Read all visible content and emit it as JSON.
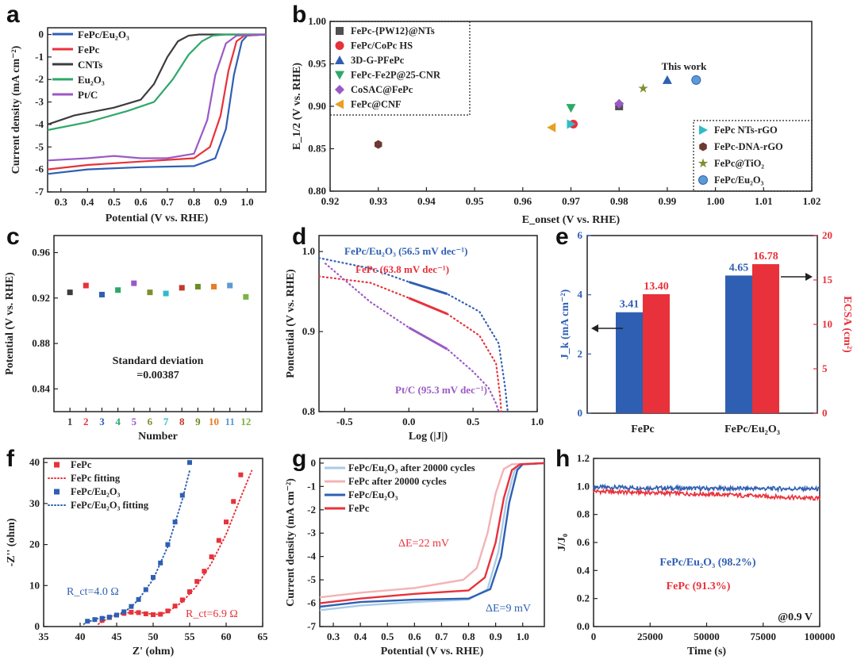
{
  "colors": {
    "blue": "#2f5fb3",
    "red": "#e8313a",
    "gray": "#3c3c3c",
    "green": "#2ea86a",
    "purple": "#9b59c5",
    "lightblue": "#a9cbe8",
    "pink": "#f3b3b6",
    "olive": "#7f8f2e",
    "cyan": "#2fbcc9",
    "brown": "#6b3a32",
    "orange": "#e8a020",
    "darkgray": "#505050"
  },
  "chart_data": [
    {
      "panel": "a",
      "type": "line",
      "xlabel": "Potential (V vs. RHE)",
      "ylabel": "Current density (mA cm⁻²)",
      "xlim": [
        0.25,
        1.07
      ],
      "ylim": [
        -7,
        0.3
      ],
      "xticks": [
        "0.3",
        "0.4",
        "0.5",
        "0.6",
        "0.7",
        "0.8",
        "0.9",
        "1.0"
      ],
      "yticks": [
        "0",
        "-1",
        "-2",
        "-3",
        "-4",
        "-5",
        "-6",
        "-7"
      ],
      "legend_position": "top-left",
      "series": [
        {
          "name": "FePc/Eu₂O₃",
          "color": "#2f5fb3",
          "x": [
            0.25,
            0.4,
            0.6,
            0.8,
            0.88,
            0.92,
            0.95,
            0.98,
            1.0,
            1.07
          ],
          "values": [
            -6.2,
            -6.0,
            -5.9,
            -5.85,
            -5.5,
            -4.2,
            -1.8,
            -0.3,
            -0.05,
            0
          ]
        },
        {
          "name": "FePc",
          "color": "#e8313a",
          "x": [
            0.25,
            0.4,
            0.6,
            0.8,
            0.86,
            0.9,
            0.93,
            0.96,
            0.99,
            1.07
          ],
          "values": [
            -6.0,
            -5.8,
            -5.65,
            -5.5,
            -5.0,
            -3.6,
            -1.6,
            -0.3,
            -0.05,
            0
          ]
        },
        {
          "name": "CNTs",
          "color": "#3c3c3c",
          "x": [
            0.25,
            0.35,
            0.5,
            0.6,
            0.65,
            0.7,
            0.74,
            0.78,
            0.82,
            1.07
          ],
          "values": [
            -4.0,
            -3.6,
            -3.25,
            -2.9,
            -2.2,
            -1.0,
            -0.3,
            -0.05,
            0,
            0
          ]
        },
        {
          "name": "Eu₂O₃",
          "color": "#2ea86a",
          "x": [
            0.25,
            0.4,
            0.55,
            0.65,
            0.72,
            0.78,
            0.83,
            0.87,
            0.92,
            1.07
          ],
          "values": [
            -4.25,
            -3.9,
            -3.4,
            -3.0,
            -2.0,
            -0.9,
            -0.3,
            -0.05,
            0,
            0
          ]
        },
        {
          "name": "Pt/C",
          "color": "#9b59c5",
          "x": [
            0.25,
            0.4,
            0.5,
            0.6,
            0.7,
            0.8,
            0.85,
            0.88,
            0.92,
            0.96,
            1.07
          ],
          "values": [
            -5.6,
            -5.5,
            -5.4,
            -5.5,
            -5.5,
            -5.3,
            -3.8,
            -1.8,
            -0.4,
            -0.05,
            0
          ]
        }
      ]
    },
    {
      "panel": "b",
      "type": "scatter",
      "xlabel": "E_onset (V vs. RHE)",
      "ylabel": "E_1/2 (V vs. RHE)",
      "xlim": [
        0.92,
        1.02
      ],
      "ylim": [
        0.8,
        1.0
      ],
      "xticks": [
        "0.92",
        "0.93",
        "0.94",
        "0.95",
        "0.96",
        "0.97",
        "0.98",
        "0.99",
        "1.00",
        "1.01",
        "1.02"
      ],
      "yticks": [
        "0.80",
        "0.85",
        "0.90",
        "0.95",
        "1.00"
      ],
      "annotation": "This work",
      "points": [
        {
          "name": "FePc-{PW12}@NTs",
          "x": 0.98,
          "y": 0.9,
          "marker": "square",
          "color": "#505050"
        },
        {
          "name": "FePc/CoPc HS",
          "x": 0.9705,
          "y": 0.879,
          "marker": "circle",
          "color": "#e8313a"
        },
        {
          "name": "3D-G-PFePc",
          "x": 0.99,
          "y": 0.931,
          "marker": "triangle-up",
          "color": "#2f5fb3"
        },
        {
          "name": "FePc-Fe2P@25-CNR",
          "x": 0.97,
          "y": 0.898,
          "marker": "triangle-down",
          "color": "#2ea86a"
        },
        {
          "name": "CoSAC@FePc",
          "x": 0.98,
          "y": 0.903,
          "marker": "diamond",
          "color": "#9b59c5"
        },
        {
          "name": "FePc@CNF",
          "x": 0.966,
          "y": 0.875,
          "marker": "triangle-left",
          "color": "#e8a020"
        },
        {
          "name": "FePc NTs-rGO",
          "x": 0.97,
          "y": 0.879,
          "marker": "triangle-right",
          "color": "#2fbcc9"
        },
        {
          "name": "FePc-DNA-rGO",
          "x": 0.93,
          "y": 0.855,
          "marker": "hexagon",
          "color": "#6b3a32"
        },
        {
          "name": "FePc@TiO₂",
          "x": 0.985,
          "y": 0.921,
          "marker": "star",
          "color": "#7f8f2e"
        },
        {
          "name": "FePc/Eu₂O₃",
          "x": 0.996,
          "y": 0.931,
          "marker": "sphere",
          "color": "#5b9bd5"
        }
      ]
    },
    {
      "panel": "c",
      "type": "scatter",
      "xlabel": "Number",
      "ylabel": "Potential (V vs. RHE)",
      "xlim": [
        0,
        13
      ],
      "ylim": [
        0.82,
        0.975
      ],
      "xticks": [
        "1",
        "2",
        "3",
        "4",
        "5",
        "6",
        "7",
        "8",
        "9",
        "10",
        "11",
        "12"
      ],
      "yticks": [
        "0.84",
        "0.88",
        "0.92",
        "0.96"
      ],
      "annotation_lines": [
        "Standard deviation",
        "=0.00387"
      ],
      "x": [
        1,
        2,
        3,
        4,
        5,
        6,
        7,
        8,
        9,
        10,
        11,
        12
      ],
      "values": [
        0.925,
        0.931,
        0.923,
        0.927,
        0.933,
        0.925,
        0.924,
        0.929,
        0.93,
        0.93,
        0.931,
        0.921
      ],
      "point_colors": [
        "#3c3c3c",
        "#e8313a",
        "#2f5fb3",
        "#2ea86a",
        "#9b59c5",
        "#7f8f2e",
        "#2fbcc9",
        "#c0392b",
        "#6b8e23",
        "#e67e22",
        "#5b9bd5",
        "#7cb342"
      ]
    },
    {
      "panel": "d",
      "type": "line",
      "xlabel": "Log (|J|)",
      "ylabel": "Pontential (V vs. RHE)",
      "xlim": [
        -0.7,
        1.0
      ],
      "ylim": [
        0.8,
        1.02
      ],
      "xticks": [
        "-0.5",
        "0.0",
        "0.5",
        "1.0"
      ],
      "yticks": [
        "0.8",
        "0.9",
        "1.0"
      ],
      "series": [
        {
          "name": "FePc/Eu₂O₃ (56.5 mV dec⁻¹)",
          "color": "#2f5fb3",
          "x": [
            -0.7,
            -0.3,
            0.0,
            0.3,
            0.55,
            0.7,
            0.75,
            0.77
          ],
          "values": [
            0.992,
            0.979,
            0.962,
            0.947,
            0.925,
            0.885,
            0.83,
            0.8
          ]
        },
        {
          "name": "FePc (63.8 mV dec⁻¹)",
          "color": "#e8313a",
          "x": [
            -0.7,
            -0.3,
            0.0,
            0.3,
            0.55,
            0.68,
            0.71,
            0.72
          ],
          "values": [
            0.969,
            0.961,
            0.942,
            0.922,
            0.895,
            0.86,
            0.82,
            0.8
          ]
        },
        {
          "name": "Pt/C (95.3 mV dec⁻¹)",
          "color": "#9b59c5",
          "x": [
            -0.65,
            -0.3,
            0.0,
            0.3,
            0.5,
            0.62,
            0.68,
            0.7
          ],
          "values": [
            0.985,
            0.937,
            0.905,
            0.878,
            0.85,
            0.83,
            0.81,
            0.8
          ]
        }
      ]
    },
    {
      "panel": "e",
      "type": "bar",
      "categories": [
        "FePc",
        "FePc/Eu₂O₃"
      ],
      "ylabel_left": "J_k (mA cm⁻²)",
      "ylabel_right": "ECSA (cm²)",
      "ylim_left": [
        0,
        6
      ],
      "ylim_right": [
        0,
        20
      ],
      "yticks_left": [
        "0",
        "2",
        "4",
        "6"
      ],
      "yticks_right": [
        "0",
        "5",
        "10",
        "15",
        "20"
      ],
      "series": [
        {
          "name": "J_k",
          "axis": "left",
          "color": "#2f5fb3",
          "values": [
            3.41,
            4.65
          ],
          "labels": [
            "3.41",
            "4.65"
          ]
        },
        {
          "name": "ECSA",
          "axis": "right",
          "color": "#e8313a",
          "values": [
            13.4,
            16.78
          ],
          "labels": [
            "13.40",
            "16.78"
          ]
        }
      ]
    },
    {
      "panel": "f",
      "type": "scatter",
      "xlabel": "Z' (ohm)",
      "ylabel": "-Z'' (ohm)",
      "xlim": [
        35,
        65
      ],
      "ylim": [
        0,
        41
      ],
      "xticks": [
        "35",
        "40",
        "45",
        "50",
        "55",
        "60",
        "65"
      ],
      "yticks": [
        "0",
        "10",
        "20",
        "30",
        "40"
      ],
      "annotations": [
        "R_ct=4.0 Ω",
        "R_ct=6.9 Ω"
      ],
      "series": [
        {
          "name": "FePc",
          "color": "#e8313a",
          "marker": "square",
          "x": [
            43,
            44,
            45,
            46,
            47,
            48,
            49,
            50,
            51,
            52,
            53,
            54,
            55,
            56,
            57,
            58,
            59,
            60,
            61,
            62
          ],
          "values": [
            1.5,
            2.2,
            2.8,
            3.2,
            3.5,
            3.4,
            3.1,
            2.9,
            3.0,
            3.8,
            5.0,
            6.5,
            8.5,
            11,
            13.5,
            17,
            21,
            25.5,
            30.5,
            37
          ]
        },
        {
          "name": "FePc fitting",
          "color": "#e8313a",
          "style": "dotted",
          "x": [
            42.5,
            44,
            46,
            48,
            50,
            51,
            52,
            54,
            56,
            58,
            60,
            62,
            63.5,
            64.5
          ],
          "values": [
            0.6,
            2.2,
            3.3,
            3.5,
            3.0,
            3.0,
            3.6,
            6.0,
            10,
            15.5,
            22.5,
            31.5,
            38,
            42
          ]
        },
        {
          "name": "FePc/Eu₂O₃",
          "color": "#2f5fb3",
          "marker": "square",
          "x": [
            41,
            42,
            43,
            44,
            45,
            46,
            47,
            48,
            49,
            50,
            51,
            52,
            53,
            54,
            55
          ],
          "values": [
            1.3,
            1.7,
            2.0,
            2.3,
            2.8,
            3.6,
            4.9,
            6.6,
            9.0,
            12,
            15.5,
            20,
            25.5,
            32,
            40
          ]
        },
        {
          "name": "FePc/Eu₂O₃ fitting",
          "color": "#2f5fb3",
          "style": "dotted",
          "x": [
            40.5,
            42,
            44,
            46,
            47,
            48,
            50,
            52,
            54,
            55,
            56
          ],
          "values": [
            0.6,
            1.8,
            2.4,
            3.5,
            4.8,
            6.6,
            11.5,
            19.5,
            31,
            38,
            44
          ]
        }
      ]
    },
    {
      "panel": "g",
      "type": "line",
      "xlabel": "Potential (V vs. RHE)",
      "ylabel": "Current density (mA cm⁻²)",
      "xlim": [
        0.25,
        1.08
      ],
      "ylim": [
        -7,
        0.2
      ],
      "xticks": [
        "0.3",
        "0.4",
        "0.5",
        "0.6",
        "0.7",
        "0.8",
        "0.9",
        "1.0"
      ],
      "yticks": [
        "0",
        "-1",
        "-2",
        "-3",
        "-4",
        "-5",
        "-6",
        "-7"
      ],
      "annotations": [
        "ΔE=22 mV",
        "ΔE=9 mV"
      ],
      "series": [
        {
          "name": "FePc/Eu₂O₃ after 20000 cycles",
          "color": "#a9cbe8",
          "x": [
            0.25,
            0.4,
            0.6,
            0.8,
            0.87,
            0.91,
            0.94,
            0.97,
            1.0,
            1.08
          ],
          "values": [
            -6.3,
            -6.1,
            -5.95,
            -5.85,
            -5.4,
            -3.8,
            -1.6,
            -0.3,
            -0.05,
            0
          ]
        },
        {
          "name": "FePc after 20000 cycles",
          "color": "#f3b3b6",
          "x": [
            0.25,
            0.4,
            0.6,
            0.78,
            0.83,
            0.87,
            0.9,
            0.93,
            0.96,
            1.08
          ],
          "values": [
            -5.75,
            -5.55,
            -5.35,
            -5.0,
            -4.5,
            -3.0,
            -1.3,
            -0.25,
            -0.05,
            0
          ]
        },
        {
          "name": "FePc/Eu₂O₃",
          "color": "#2f5fb3",
          "x": [
            0.25,
            0.4,
            0.6,
            0.8,
            0.88,
            0.92,
            0.95,
            0.98,
            1.0,
            1.08
          ],
          "values": [
            -6.15,
            -5.95,
            -5.85,
            -5.8,
            -5.4,
            -4.0,
            -1.7,
            -0.3,
            -0.05,
            0
          ]
        },
        {
          "name": "FePc",
          "color": "#e8313a",
          "x": [
            0.25,
            0.4,
            0.6,
            0.8,
            0.86,
            0.9,
            0.93,
            0.96,
            0.99,
            1.08
          ],
          "values": [
            -6.0,
            -5.8,
            -5.6,
            -5.45,
            -4.9,
            -3.4,
            -1.5,
            -0.3,
            -0.05,
            0
          ]
        }
      ]
    },
    {
      "panel": "h",
      "type": "line",
      "xlabel": "Time (s)",
      "ylabel": "J/J₀",
      "xlim": [
        0,
        100000
      ],
      "ylim": [
        0,
        1.2
      ],
      "xticks": [
        "0",
        "25000",
        "50000",
        "75000",
        "100000"
      ],
      "yticks": [
        "0.0",
        "0.2",
        "0.4",
        "0.6",
        "0.8",
        "1.0",
        "1.2"
      ],
      "annotations": [
        "@0.9 V"
      ],
      "series": [
        {
          "name": "FePc/Eu₂O₃ (98.2%)",
          "color": "#2f5fb3",
          "x": [
            0,
            25000,
            50000,
            75000,
            100000
          ],
          "values": [
            0.995,
            0.99,
            0.985,
            0.985,
            0.982
          ]
        },
        {
          "name": "FePc (91.3%)",
          "color": "#e8313a",
          "x": [
            0,
            25000,
            50000,
            75000,
            100000
          ],
          "values": [
            0.965,
            0.955,
            0.945,
            0.93,
            0.913
          ]
        }
      ]
    }
  ],
  "panels": {
    "a": {
      "label": "a",
      "legend": [
        "FePc/Eu₂O₃",
        "FePc",
        "CNTs",
        "Eu₂O₃",
        "Pt/C"
      ]
    },
    "b": {
      "label": "b",
      "legend_left": [
        "FePc-{PW12}@NTs",
        "FePc/CoPc HS",
        "3D-G-PFePc",
        "FePc-Fe2P@25-CNR",
        "CoSAC@FePc",
        "FePc@CNF"
      ],
      "legend_right": [
        "FePc NTs-rGO",
        "FePc-DNA-rGO",
        "FePc@TiO₂",
        "FePc/Eu₂O₃"
      ]
    },
    "c": {
      "label": "c"
    },
    "d": {
      "label": "d"
    },
    "e": {
      "label": "e"
    },
    "f": {
      "label": "f",
      "legend": [
        "FePc",
        "FePc fitting",
        "FePc/Eu₂O₃",
        "FePc/Eu₂O₃ fitting"
      ]
    },
    "g": {
      "label": "g",
      "legend": [
        "FePc/Eu₂O₃ after 20000 cycles",
        "FePc after 20000 cycles",
        "FePc/Eu₂O₃",
        "FePc"
      ]
    },
    "h": {
      "label": "h"
    }
  }
}
